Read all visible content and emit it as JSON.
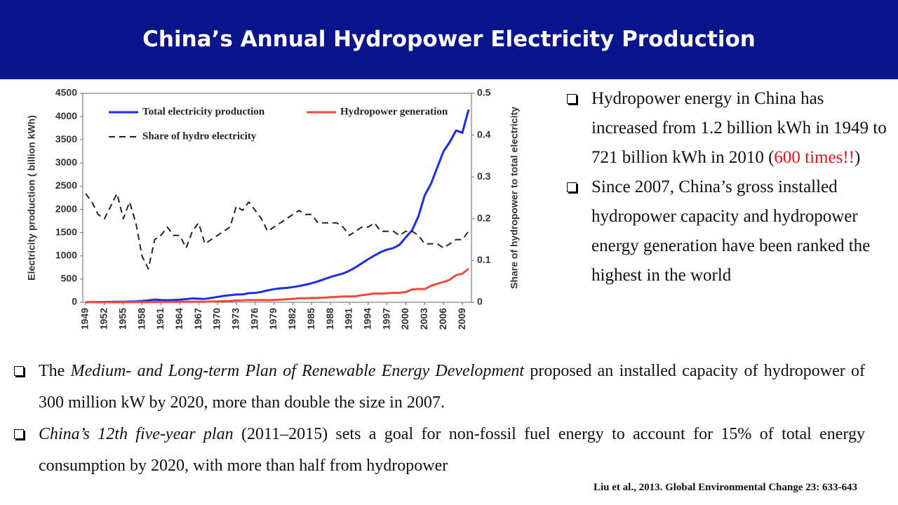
{
  "header": {
    "title": "China’s Annual Hydropower Electricity Production"
  },
  "chart_data": {
    "type": "line",
    "y_label": "Electricity production ( billion kWh)",
    "y2_label": "Share of hydropower to total electricity",
    "x": [
      1949,
      1950,
      1951,
      1952,
      1953,
      1954,
      1955,
      1956,
      1957,
      1958,
      1959,
      1960,
      1961,
      1962,
      1963,
      1964,
      1965,
      1966,
      1967,
      1968,
      1969,
      1970,
      1971,
      1972,
      1973,
      1974,
      1975,
      1976,
      1977,
      1978,
      1979,
      1980,
      1981,
      1982,
      1983,
      1984,
      1985,
      1986,
      1987,
      1988,
      1989,
      1990,
      1991,
      1992,
      1993,
      1994,
      1995,
      1996,
      1997,
      1998,
      1999,
      2000,
      2001,
      2002,
      2003,
      2004,
      2005,
      2006,
      2007,
      2008,
      2009,
      2010
    ],
    "xlim": [
      1949,
      2010
    ],
    "xticks": [
      1949,
      1952,
      1955,
      1958,
      1961,
      1964,
      1967,
      1970,
      1973,
      1976,
      1979,
      1982,
      1985,
      1988,
      1991,
      1994,
      1997,
      2000,
      2003,
      2006,
      2009
    ],
    "ylim": [
      0,
      4500
    ],
    "yticks": [
      0,
      500,
      1000,
      1500,
      2000,
      2500,
      3000,
      3500,
      4000,
      4500
    ],
    "y2lim": [
      0,
      0.5
    ],
    "y2ticks": [
      0,
      0.1,
      0.2,
      0.3,
      0.4,
      0.5
    ],
    "legend": "top",
    "series": [
      {
        "name": "Total electricity production",
        "color": "#1a2ee6",
        "values": [
          4,
          5,
          6,
          7,
          9,
          11,
          12,
          17,
          19,
          28,
          42,
          59,
          48,
          46,
          49,
          56,
          68,
          83,
          77,
          72,
          94,
          116,
          138,
          152,
          167,
          169,
          196,
          203,
          223,
          257,
          282,
          301,
          309,
          328,
          351,
          377,
          411,
          450,
          497,
          545,
          585,
          621,
          678,
          754,
          840,
          928,
          1007,
          1081,
          1134,
          1167,
          1239,
          1400,
          1550,
          1850,
          2300,
          2550,
          2900,
          3250,
          3450,
          3700,
          3650,
          4150
        ]
      },
      {
        "name": "Hydropower generation",
        "color": "#f04a3c",
        "values": [
          1.2,
          1.5,
          1.8,
          1.3,
          1.5,
          2.2,
          2.4,
          3.5,
          4.8,
          4.1,
          4.3,
          7.4,
          7.4,
          9,
          8.7,
          10.6,
          10.4,
          12.5,
          13,
          11.5,
          16,
          20,
          25,
          29,
          39,
          41,
          48,
          46,
          48,
          45,
          50,
          58,
          66,
          74,
          86,
          87,
          92,
          95,
          100,
          109,
          118,
          126,
          125,
          131,
          152,
          167,
          191,
          187,
          195,
          204,
          204,
          222,
          277,
          288,
          284,
          354,
          397,
          436,
          485,
          585,
          616,
          721
        ]
      },
      {
        "name": "Share of hydro electricity",
        "color": "#222222",
        "linestyle": "dashed",
        "axis": "y2",
        "values": [
          0.26,
          0.24,
          0.21,
          0.2,
          0.23,
          0.26,
          0.2,
          0.24,
          0.19,
          0.11,
          0.08,
          0.15,
          0.16,
          0.18,
          0.16,
          0.16,
          0.13,
          0.17,
          0.19,
          0.14,
          0.15,
          0.16,
          0.17,
          0.18,
          0.23,
          0.22,
          0.24,
          0.22,
          0.2,
          0.17,
          0.18,
          0.19,
          0.2,
          0.21,
          0.22,
          0.21,
          0.21,
          0.19,
          0.19,
          0.19,
          0.19,
          0.18,
          0.16,
          0.17,
          0.18,
          0.18,
          0.19,
          0.17,
          0.17,
          0.17,
          0.16,
          0.17,
          0.17,
          0.16,
          0.14,
          0.14,
          0.14,
          0.13,
          0.14,
          0.15,
          0.15,
          0.17
        ]
      }
    ]
  },
  "side_bullets": [
    [
      "Hydropower energy in China has increased from 1.2 billion kWh in 1949 to 721 billion kWh in 2010 (",
      "600 times!!",
      ")"
    ],
    [
      "Since 2007, China’s gross installed hydropower capacity and hydropower energy generation have been ranked the highest in the world"
    ]
  ],
  "bottom_bullets": [
    [
      "The ",
      "Medium- and Long-term Plan of Renewable Energy Development",
      " proposed an installed capacity of hydropower of 300 million kW by 2020, more than double the size in 2007."
    ],
    [
      "China’s 12th five-year plan",
      " (2011–2015) sets a goal for non-fossil fuel energy to account for 15% of total energy consumption by 2020, with more than half from hydropower"
    ]
  ],
  "citation": "Liu et al., 2013. Global Environmental Change 23: 633-643"
}
